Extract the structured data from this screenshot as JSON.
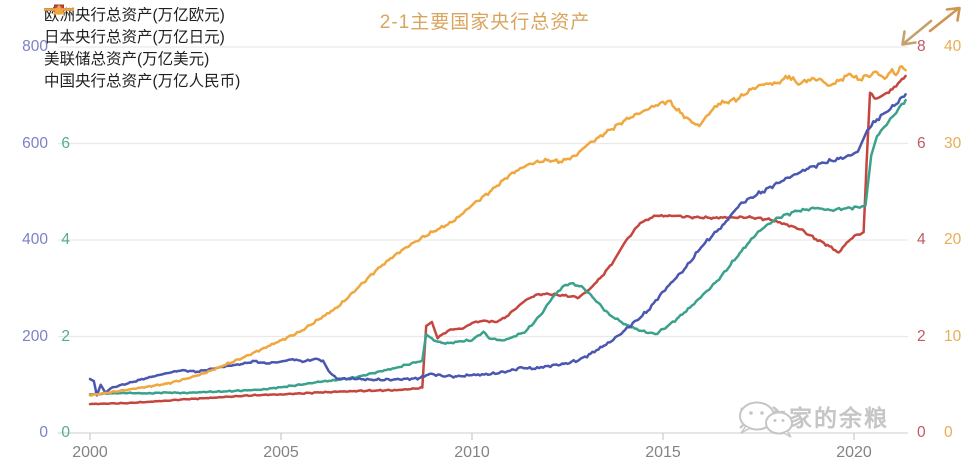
{
  "header": {
    "title": "2-1主要国家央行总资产",
    "title_color": "#d9a55e"
  },
  "corner_icons": {
    "up_right": {
      "name": "arrow-up-right-icon",
      "color": "#cf9552"
    },
    "down_left": {
      "name": "arrow-down-left-icon",
      "color": "#c5a26c"
    }
  },
  "watermark": {
    "icon": "wechat-icon",
    "text": "财主家的余粮",
    "color": "#c3c3c3"
  },
  "chart_data": {
    "type": "line",
    "title": "2-1主要国家央行总资产",
    "grid": {
      "horizontal_lines": 5,
      "color": "#e9e9e9",
      "axis_color": "#d8d8d8",
      "tick_color": "#c9c9c9"
    },
    "x_axis": {
      "ticks": [
        2000,
        2005,
        2010,
        2015,
        2020
      ],
      "label_color": "#848484",
      "range": [
        2000,
        2021.4
      ]
    },
    "y_axes": [
      {
        "id": "jpy",
        "side": "left",
        "edge_x": 48,
        "color": "#7b80c8",
        "max": 800,
        "ticks": [
          800,
          600,
          400,
          200,
          0
        ]
      },
      {
        "id": "eur",
        "side": "left",
        "edge_x": 70,
        "color": "#54ab96",
        "max": 8,
        "ticks": [
          6,
          4,
          2,
          0
        ]
      },
      {
        "id": "usd",
        "side": "right",
        "edge_x": 917,
        "color": "#c05a64",
        "max": 8,
        "ticks": [
          8,
          6,
          4,
          2,
          0
        ]
      },
      {
        "id": "cny",
        "side": "right",
        "edge_x": 944,
        "color": "#e8ad55",
        "max": 40,
        "ticks": [
          40,
          30,
          20,
          10,
          0
        ]
      }
    ],
    "series": [
      {
        "name": "欧洲央行总资产(万亿欧元)",
        "color": "#3aa28c",
        "marker": "circle",
        "axis": "eur",
        "z": 2,
        "points": [
          [
            2000,
            0.8
          ],
          [
            2000.5,
            0.82
          ],
          [
            2001,
            0.83
          ],
          [
            2001.5,
            0.82
          ],
          [
            2002,
            0.84
          ],
          [
            2002.5,
            0.83
          ],
          [
            2003,
            0.85
          ],
          [
            2003.5,
            0.86
          ],
          [
            2004,
            0.88
          ],
          [
            2004.5,
            0.9
          ],
          [
            2005,
            0.95
          ],
          [
            2005.5,
            1.0
          ],
          [
            2006,
            1.06
          ],
          [
            2006.5,
            1.1
          ],
          [
            2007,
            1.16
          ],
          [
            2007.5,
            1.26
          ],
          [
            2008,
            1.35
          ],
          [
            2008.55,
            1.47
          ],
          [
            2008.7,
            1.5
          ],
          [
            2008.8,
            2.05
          ],
          [
            2009,
            1.92
          ],
          [
            2009.3,
            1.85
          ],
          [
            2009.7,
            1.9
          ],
          [
            2010,
            1.92
          ],
          [
            2010.3,
            2.1
          ],
          [
            2010.45,
            1.96
          ],
          [
            2010.8,
            1.92
          ],
          [
            2011,
            1.97
          ],
          [
            2011.4,
            2.1
          ],
          [
            2011.8,
            2.45
          ],
          [
            2012.1,
            2.8
          ],
          [
            2012.4,
            3.05
          ],
          [
            2012.6,
            3.1
          ],
          [
            2012.9,
            3.02
          ],
          [
            2013.2,
            2.78
          ],
          [
            2013.6,
            2.45
          ],
          [
            2014,
            2.26
          ],
          [
            2014.4,
            2.12
          ],
          [
            2014.8,
            2.05
          ],
          [
            2015.1,
            2.2
          ],
          [
            2015.5,
            2.45
          ],
          [
            2016,
            2.82
          ],
          [
            2016.5,
            3.22
          ],
          [
            2017,
            3.72
          ],
          [
            2017.5,
            4.18
          ],
          [
            2018,
            4.46
          ],
          [
            2018.5,
            4.6
          ],
          [
            2019,
            4.66
          ],
          [
            2019.4,
            4.62
          ],
          [
            2019.8,
            4.66
          ],
          [
            2020.1,
            4.68
          ],
          [
            2020.3,
            4.72
          ],
          [
            2020.45,
            5.75
          ],
          [
            2020.6,
            6.15
          ],
          [
            2020.8,
            6.35
          ],
          [
            2021,
            6.55
          ],
          [
            2021.15,
            6.7
          ],
          [
            2021.35,
            6.9
          ]
        ]
      },
      {
        "name": "日本央行总资产(万亿日元)",
        "color": "#4a57b0",
        "marker": "diamond",
        "axis": "jpy",
        "z": 3,
        "points": [
          [
            2000,
            112
          ],
          [
            2000.1,
            108
          ],
          [
            2000.18,
            78
          ],
          [
            2000.28,
            100
          ],
          [
            2000.4,
            84
          ],
          [
            2000.55,
            93
          ],
          [
            2000.75,
            98
          ],
          [
            2001,
            103
          ],
          [
            2001.3,
            110
          ],
          [
            2001.6,
            116
          ],
          [
            2002,
            124
          ],
          [
            2002.4,
            130
          ],
          [
            2002.8,
            127
          ],
          [
            2003.2,
            133
          ],
          [
            2003.6,
            139
          ],
          [
            2004,
            143
          ],
          [
            2004.3,
            149
          ],
          [
            2004.6,
            144
          ],
          [
            2005,
            148
          ],
          [
            2005.3,
            153
          ],
          [
            2005.6,
            148
          ],
          [
            2005.9,
            154
          ],
          [
            2006.1,
            150
          ],
          [
            2006.25,
            128
          ],
          [
            2006.45,
            113
          ],
          [
            2007,
            112
          ],
          [
            2007.5,
            110
          ],
          [
            2008,
            111
          ],
          [
            2008.6,
            113
          ],
          [
            2008.9,
            123
          ],
          [
            2009.2,
            119
          ],
          [
            2009.6,
            117
          ],
          [
            2010,
            120
          ],
          [
            2010.5,
            122
          ],
          [
            2011,
            129
          ],
          [
            2011.3,
            136
          ],
          [
            2011.6,
            133
          ],
          [
            2012,
            139
          ],
          [
            2012.4,
            143
          ],
          [
            2012.8,
            151
          ],
          [
            2013.1,
            164
          ],
          [
            2013.4,
            178
          ],
          [
            2013.7,
            193
          ],
          [
            2014,
            213
          ],
          [
            2014.3,
            233
          ],
          [
            2014.6,
            253
          ],
          [
            2015,
            293
          ],
          [
            2015.3,
            318
          ],
          [
            2015.6,
            343
          ],
          [
            2016,
            385
          ],
          [
            2016.3,
            410
          ],
          [
            2016.6,
            433
          ],
          [
            2017,
            473
          ],
          [
            2017.3,
            488
          ],
          [
            2017.6,
            500
          ],
          [
            2018,
            518
          ],
          [
            2018.4,
            534
          ],
          [
            2018.8,
            548
          ],
          [
            2019.2,
            560
          ],
          [
            2019.6,
            568
          ],
          [
            2019.9,
            575
          ],
          [
            2020.1,
            583
          ],
          [
            2020.35,
            628
          ],
          [
            2020.6,
            650
          ],
          [
            2020.85,
            665
          ],
          [
            2021.05,
            678
          ],
          [
            2021.35,
            702
          ]
        ]
      },
      {
        "name": "美联储总资产(万亿美元)",
        "color": "#c5463e",
        "marker": "square",
        "axis": "usd",
        "z": 1,
        "points": [
          [
            2000,
            0.6
          ],
          [
            2000.5,
            0.61
          ],
          [
            2001,
            0.62
          ],
          [
            2001.5,
            0.645
          ],
          [
            2002,
            0.67
          ],
          [
            2002.5,
            0.7
          ],
          [
            2003,
            0.72
          ],
          [
            2003.5,
            0.745
          ],
          [
            2004,
            0.77
          ],
          [
            2004.5,
            0.79
          ],
          [
            2005,
            0.8
          ],
          [
            2005.5,
            0.82
          ],
          [
            2006,
            0.84
          ],
          [
            2006.5,
            0.855
          ],
          [
            2007,
            0.87
          ],
          [
            2007.5,
            0.88
          ],
          [
            2008,
            0.89
          ],
          [
            2008.4,
            0.91
          ],
          [
            2008.7,
            0.94
          ],
          [
            2008.8,
            2.22
          ],
          [
            2008.95,
            2.3
          ],
          [
            2009.1,
            1.96
          ],
          [
            2009.25,
            2.06
          ],
          [
            2009.45,
            2.15
          ],
          [
            2009.75,
            2.16
          ],
          [
            2010,
            2.28
          ],
          [
            2010.3,
            2.33
          ],
          [
            2010.6,
            2.3
          ],
          [
            2010.85,
            2.38
          ],
          [
            2011.1,
            2.55
          ],
          [
            2011.4,
            2.75
          ],
          [
            2011.7,
            2.87
          ],
          [
            2012,
            2.88
          ],
          [
            2012.4,
            2.85
          ],
          [
            2012.8,
            2.81
          ],
          [
            2013.1,
            3.0
          ],
          [
            2013.4,
            3.25
          ],
          [
            2013.7,
            3.55
          ],
          [
            2014,
            3.95
          ],
          [
            2014.4,
            4.35
          ],
          [
            2014.8,
            4.5
          ],
          [
            2015.3,
            4.5
          ],
          [
            2015.8,
            4.47
          ],
          [
            2016.3,
            4.46
          ],
          [
            2016.8,
            4.47
          ],
          [
            2017.3,
            4.47
          ],
          [
            2017.8,
            4.42
          ],
          [
            2018.2,
            4.33
          ],
          [
            2018.6,
            4.22
          ],
          [
            2019,
            4.02
          ],
          [
            2019.3,
            3.9
          ],
          [
            2019.6,
            3.74
          ],
          [
            2019.8,
            3.94
          ],
          [
            2020,
            4.08
          ],
          [
            2020.25,
            4.16
          ],
          [
            2020.33,
            5.6
          ],
          [
            2020.42,
            7.05
          ],
          [
            2020.55,
            6.93
          ],
          [
            2020.75,
            7.0
          ],
          [
            2021,
            7.12
          ],
          [
            2021.2,
            7.28
          ],
          [
            2021.35,
            7.4
          ]
        ]
      },
      {
        "name": "中国央行总资产(万亿人民币)",
        "color": "#f0a73e",
        "marker": "triangle",
        "axis": "cny",
        "z": 4,
        "points": [
          [
            2000,
            3.9
          ],
          [
            2000.5,
            4.2
          ],
          [
            2001,
            4.5
          ],
          [
            2001.5,
            4.8
          ],
          [
            2002,
            5.1
          ],
          [
            2002.5,
            5.6
          ],
          [
            2003,
            6.2
          ],
          [
            2003.5,
            7.0
          ],
          [
            2004,
            7.8
          ],
          [
            2004.5,
            8.7
          ],
          [
            2005,
            9.6
          ],
          [
            2005.5,
            10.5
          ],
          [
            2006,
            11.8
          ],
          [
            2006.5,
            13.1
          ],
          [
            2007,
            15.0
          ],
          [
            2007.5,
            16.9
          ],
          [
            2008,
            18.5
          ],
          [
            2008.5,
            19.8
          ],
          [
            2009,
            20.9
          ],
          [
            2009.5,
            21.9
          ],
          [
            2010,
            23.6
          ],
          [
            2010.5,
            25.1
          ],
          [
            2011,
            26.8
          ],
          [
            2011.5,
            27.9
          ],
          [
            2012,
            28.3
          ],
          [
            2012.3,
            28.1
          ],
          [
            2012.7,
            28.7
          ],
          [
            2013,
            29.8
          ],
          [
            2013.5,
            31.1
          ],
          [
            2014,
            32.4
          ],
          [
            2014.5,
            33.4
          ],
          [
            2014.9,
            34.1
          ],
          [
            2015.15,
            34.4
          ],
          [
            2015.45,
            33.2
          ],
          [
            2015.75,
            32.2
          ],
          [
            2015.95,
            31.8
          ],
          [
            2016.15,
            32.9
          ],
          [
            2016.45,
            34.1
          ],
          [
            2016.75,
            34.4
          ],
          [
            2017,
            34.7
          ],
          [
            2017.3,
            35.6
          ],
          [
            2017.6,
            36.1
          ],
          [
            2018,
            36.3
          ],
          [
            2018.3,
            37.0
          ],
          [
            2018.55,
            36.1
          ],
          [
            2018.8,
            36.6
          ],
          [
            2019.1,
            36.7
          ],
          [
            2019.35,
            36.0
          ],
          [
            2019.6,
            36.5
          ],
          [
            2019.9,
            37.2
          ],
          [
            2020.1,
            36.6
          ],
          [
            2020.35,
            37.0
          ],
          [
            2020.6,
            37.4
          ],
          [
            2020.8,
            36.7
          ],
          [
            2021,
            37.7
          ],
          [
            2021.1,
            37.1
          ],
          [
            2021.25,
            38.0
          ],
          [
            2021.35,
            37.6
          ]
        ]
      }
    ]
  }
}
